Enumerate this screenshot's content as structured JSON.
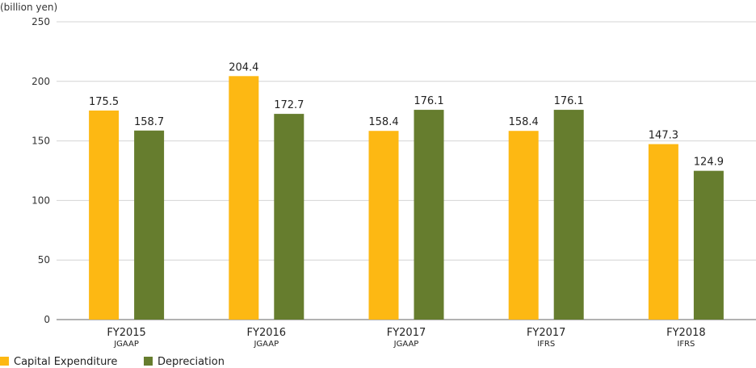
{
  "chart_data": {
    "type": "bar",
    "ylabel": "(billion yen)",
    "ylim": [
      0,
      250
    ],
    "yticks": [
      0,
      50,
      100,
      150,
      200,
      250
    ],
    "grid": true,
    "legend_position": "bottom-left",
    "categories": [
      {
        "main": "FY2015",
        "sub": "JGAAP"
      },
      {
        "main": "FY2016",
        "sub": "JGAAP"
      },
      {
        "main": "FY2017",
        "sub": "JGAAP"
      },
      {
        "main": "FY2017",
        "sub": "IFRS"
      },
      {
        "main": "FY2018",
        "sub": "IFRS"
      }
    ],
    "series": [
      {
        "name": "Capital Expenditure",
        "color": "#FDB813",
        "values": [
          175.5,
          204.4,
          158.4,
          158.4,
          147.3
        ]
      },
      {
        "name": "Depreciation",
        "color": "#667D2E",
        "values": [
          158.7,
          172.7,
          176.1,
          176.1,
          124.9
        ]
      }
    ]
  }
}
